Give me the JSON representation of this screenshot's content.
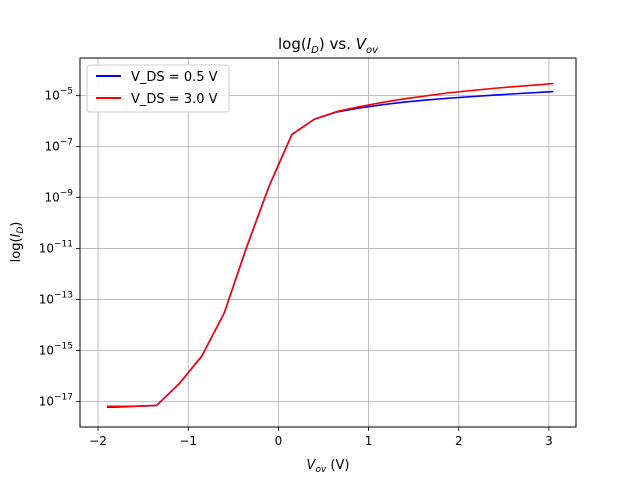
{
  "chart_data": {
    "type": "line",
    "title_prefix": "log(",
    "title_var": "I",
    "title_var_sub": "D",
    "title_mid": ") vs. ",
    "title_var2": "V",
    "title_var2_sub": "ov",
    "xlabel_var": "V",
    "xlabel_sub": "ov",
    "xlabel_unit": " (V)",
    "ylabel_prefix": "log(",
    "ylabel_var": "I",
    "ylabel_sub": "D",
    "ylabel_suffix": ")",
    "y_scale": "log",
    "xlim": [
      -2.2,
      3.3
    ],
    "ylim": [
      1e-18,
      0.0003
    ],
    "x_ticks": [
      {
        "value": -2,
        "label": "−2"
      },
      {
        "value": -1,
        "label": "−1"
      },
      {
        "value": 0,
        "label": "0"
      },
      {
        "value": 1,
        "label": "1"
      },
      {
        "value": 2,
        "label": "2"
      },
      {
        "value": 3,
        "label": "3"
      }
    ],
    "y_ticks": [
      {
        "value": 1e-17,
        "base": "10",
        "exp": "−17"
      },
      {
        "value": 1e-15,
        "base": "10",
        "exp": "−15"
      },
      {
        "value": 1e-13,
        "base": "10",
        "exp": "−13"
      },
      {
        "value": 1e-11,
        "base": "10",
        "exp": "−11"
      },
      {
        "value": 1e-09,
        "base": "10",
        "exp": "−9"
      },
      {
        "value": 1e-07,
        "base": "10",
        "exp": "−7"
      },
      {
        "value": 1e-05,
        "base": "10",
        "exp": "−5"
      }
    ],
    "grid": true,
    "legend_position": "top-left",
    "series": [
      {
        "name": "V_DS = 0.5 V",
        "color": "#0000ff",
        "x": [
          -1.9,
          -1.85,
          -1.6,
          -1.35,
          -1.1,
          -0.85,
          -0.6,
          -0.35,
          -0.1,
          0.15,
          0.4,
          0.65,
          0.9,
          1.15,
          1.4,
          1.65,
          1.9,
          2.15,
          2.4,
          2.65,
          2.9,
          3.05
        ],
        "y": [
          6e-18,
          6e-18,
          6.5e-18,
          7e-18,
          5e-17,
          6e-16,
          3e-14,
          1.2e-11,
          3e-09,
          3e-07,
          1.2e-06,
          2.3e-06,
          3.3e-06,
          4.4e-06,
          5.6e-06,
          6.8e-06,
          8e-06,
          9.2e-06,
          1.05e-05,
          1.2e-05,
          1.35e-05,
          1.45e-05
        ]
      },
      {
        "name": "V_DS = 3.0 V",
        "color": "#ff0000",
        "x": [
          -1.9,
          -1.85,
          -1.6,
          -1.35,
          -1.1,
          -0.85,
          -0.6,
          -0.35,
          -0.1,
          0.15,
          0.4,
          0.65,
          0.9,
          1.15,
          1.4,
          1.65,
          1.9,
          2.15,
          2.4,
          2.65,
          2.9,
          3.05
        ],
        "y": [
          6.5e-18,
          6.5e-18,
          6.5e-18,
          7e-18,
          5e-17,
          6e-16,
          3e-14,
          1.2e-11,
          3e-09,
          3e-07,
          1.2e-06,
          2.4e-06,
          3.7e-06,
          5.4e-06,
          7.5e-06,
          1e-05,
          1.3e-05,
          1.6e-05,
          1.95e-05,
          2.3e-05,
          2.7e-05,
          3e-05
        ]
      }
    ]
  }
}
